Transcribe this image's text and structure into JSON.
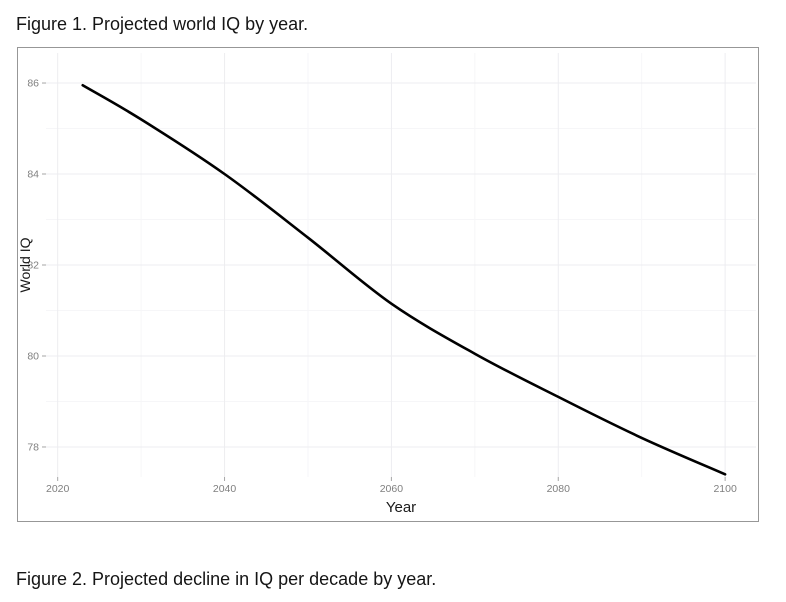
{
  "page": {
    "figure1_caption": "Figure 1. Projected world IQ by year.",
    "figure2_caption": "Figure 2. Projected decline in IQ per decade by year."
  },
  "chart_data": {
    "type": "line",
    "title": "",
    "xlabel": "Year",
    "ylabel": "World IQ",
    "x": [
      2023,
      2030,
      2040,
      2050,
      2060,
      2070,
      2080,
      2090,
      2100
    ],
    "y": [
      85.95,
      85.2,
      84.0,
      82.6,
      81.15,
      80.05,
      79.1,
      78.2,
      77.4
    ],
    "xlim": [
      2018.6,
      2103.7
    ],
    "ylim": [
      77.34,
      86.66
    ],
    "x_ticks": [
      2020,
      2040,
      2060,
      2080,
      2100
    ],
    "y_ticks": [
      78,
      80,
      82,
      84,
      86
    ],
    "x_minor_ticks": [
      2030,
      2050,
      2070,
      2090
    ],
    "y_minor_ticks": [
      79,
      81,
      83,
      85
    ],
    "grid": true,
    "legend": "none",
    "colors": {
      "line": "#000000",
      "grid_major": "#ededf0",
      "grid_minor": "#f6f6f8",
      "tick_mark": "#a6a6a6",
      "tick_label": "#7f7f7f",
      "axis_title": "#1a1a1a",
      "frame_border": "#979797"
    },
    "line_width": 2.6
  }
}
